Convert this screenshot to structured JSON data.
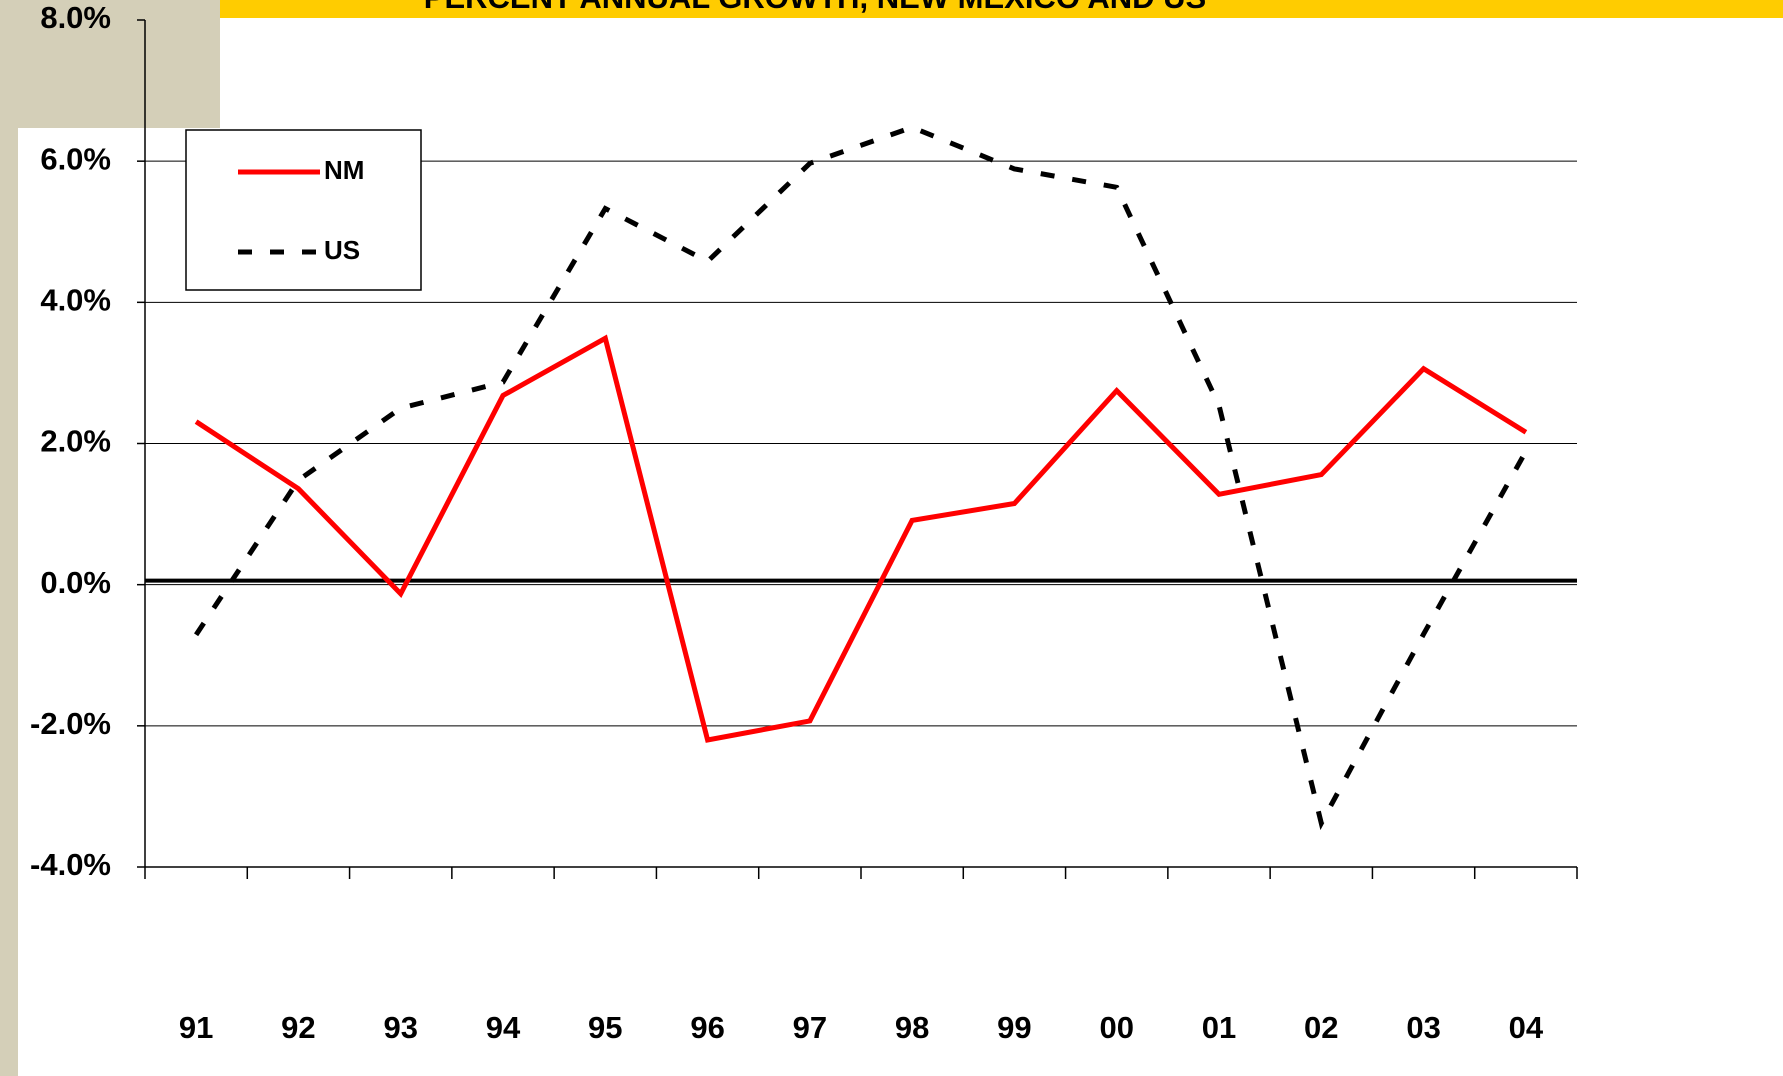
{
  "chart_data": {
    "type": "line",
    "title": "PERCENT ANNUAL GROWTH, NEW MEXICO AND US",
    "categories": [
      "91",
      "92",
      "93",
      "94",
      "95",
      "96",
      "97",
      "98",
      "99",
      "00",
      "01",
      "02",
      "03",
      "04"
    ],
    "series": [
      {
        "name": "NM",
        "color": "#ff0000",
        "dash": "solid",
        "values": [
          2.31,
          1.36,
          -0.13,
          2.68,
          3.49,
          -2.2,
          -1.93,
          0.91,
          1.15,
          2.75,
          1.28,
          1.56,
          3.06,
          2.16
        ]
      },
      {
        "name": "US",
        "color": "#000000",
        "dash": "dashed",
        "values": [
          -0.71,
          1.48,
          2.5,
          2.87,
          5.33,
          4.58,
          5.97,
          6.48,
          5.89,
          5.63,
          2.54,
          -3.38,
          -0.7,
          1.89
        ]
      }
    ],
    "ylim": [
      -4,
      8
    ],
    "yticks": [
      {
        "value": -4,
        "label": "-4.0%"
      },
      {
        "value": -2,
        "label": "-2.0%"
      },
      {
        "value": 0,
        "label": "0.0%"
      },
      {
        "value": 2,
        "label": "2.0%"
      },
      {
        "value": 4,
        "label": "4.0%"
      },
      {
        "value": 6,
        "label": "6.0%"
      },
      {
        "value": 8,
        "label": "8.0%"
      }
    ],
    "grid": true,
    "legend": "upper left"
  }
}
